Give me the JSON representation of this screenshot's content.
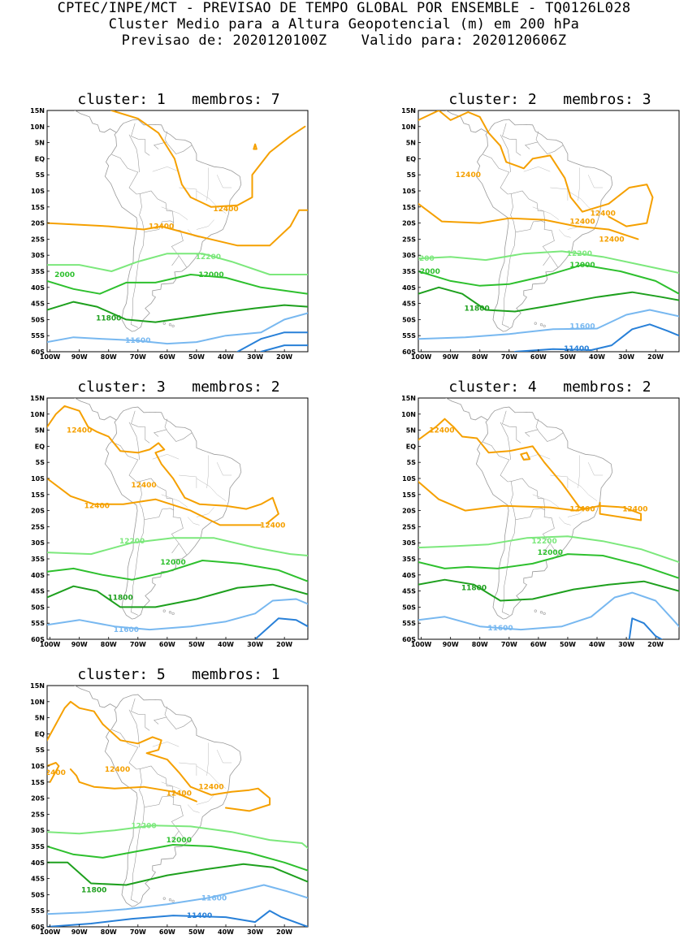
{
  "header": {
    "line1": "CPTEC/INPE/MCT - PREVISAO DE TEMPO GLOBAL POR ENSEMBLE - TQ0126L028",
    "line2": "Cluster Medio para a Altura Geopotencial (m) em 200 hPa",
    "line3": "Previsao de: 2020120100Z    Valido para: 2020120606Z"
  },
  "axes": {
    "lat_ticks": [
      "15N",
      "10N",
      "5N",
      "EQ",
      "5S",
      "10S",
      "15S",
      "20S",
      "25S",
      "30S",
      "35S",
      "40S",
      "45S",
      "50S",
      "55S",
      "60S"
    ],
    "lon_ticks": [
      "100W",
      "90W",
      "80W",
      "70W",
      "60W",
      "50W",
      "40W",
      "30W",
      "20W"
    ]
  },
  "colors": {
    "12400": "#f5a000",
    "12200": "#7ce87c",
    "12000": "#2ec02e",
    "11800": "#1ea01e",
    "11600": "#78b8f0",
    "11400": "#2880d8",
    "coast": "#9a9a9a"
  },
  "panels": [
    {
      "title": "cluster: 1   membros: 7",
      "labels": [
        "12400",
        "12400",
        "12200",
        "12000",
        "2000",
        "11800",
        "11600"
      ]
    },
    {
      "title": "cluster: 2   membros: 3",
      "labels": [
        "12400",
        "12400",
        "12400",
        "12400",
        "12200",
        "2200",
        "2000",
        "12000",
        "11800",
        "11600",
        "11400"
      ]
    },
    {
      "title": "cluster: 3   membros: 2",
      "labels": [
        "12400",
        "12400",
        "12400",
        "12400",
        "12200",
        "12000",
        "11800",
        "11600"
      ]
    },
    {
      "title": "cluster: 4   membros: 2",
      "labels": [
        "12400",
        "12400",
        "12400",
        "12200",
        "12000",
        "11800",
        "11600"
      ]
    },
    {
      "title": "cluster: 5   membros: 1",
      "labels": [
        "12400",
        "12400",
        "12400",
        "12400",
        "12200",
        "12000",
        "11800",
        "11600",
        "11400"
      ]
    }
  ]
}
